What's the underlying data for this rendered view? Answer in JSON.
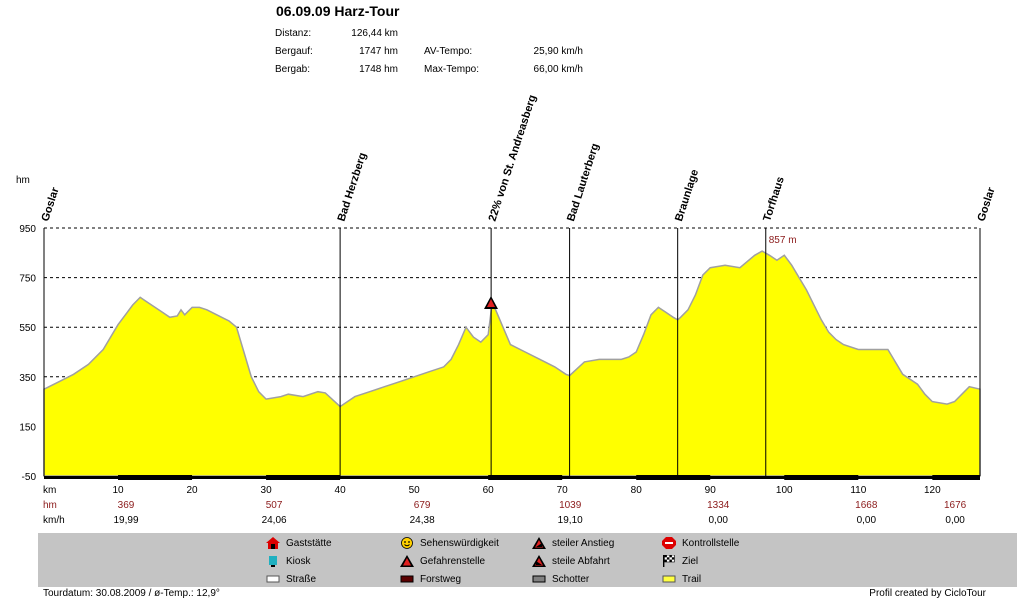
{
  "header": {
    "title": "06.09.09 Harz-Tour",
    "stats": [
      {
        "label": "Distanz:",
        "value": "126,44 km"
      },
      {
        "label": "Bergauf:",
        "value": "1747 hm"
      },
      {
        "label": "Bergab:",
        "value": "1748 hm"
      }
    ],
    "stats_right": [
      {
        "label": "AV-Tempo:",
        "value": "25,90 km/h"
      },
      {
        "label": "Max-Tempo:",
        "value": "66,00 km/h"
      }
    ]
  },
  "chart_data": {
    "type": "area",
    "ylabel": "hm",
    "xlabel": "km",
    "xlim": [
      0,
      126.44
    ],
    "ylim": [
      -50,
      950
    ],
    "y_ticks": [
      "950",
      "750",
      "550",
      "350",
      "150",
      "-50"
    ],
    "y_tick_values": [
      950,
      750,
      550,
      350,
      150,
      -50
    ],
    "x_ticks": [
      10,
      20,
      30,
      40,
      50,
      60,
      70,
      80,
      90,
      100,
      110,
      120
    ],
    "x_tick_labels": [
      "10",
      "20",
      "30",
      "40",
      "50",
      "60",
      "70",
      "80",
      "90",
      "100",
      "110",
      "120"
    ],
    "fill_color": "#ffff00",
    "line_color": "#a0a0a0",
    "grid": "dashed horizontal",
    "waypoints": [
      {
        "name": "Goslar",
        "km": 0
      },
      {
        "name": "Bad Herzberg",
        "km": 40
      },
      {
        "name": "22% von St. Andreasberg",
        "km": 60.4
      },
      {
        "name": "Bad Lauterberg",
        "km": 71
      },
      {
        "name": "Braunlage",
        "km": 85.6
      },
      {
        "name": "Torfhaus",
        "km": 97.5
      },
      {
        "name": "Goslar",
        "km": 126.44
      }
    ],
    "peak_label": {
      "text": "857 m",
      "km": 97.5,
      "elev": 857
    },
    "profile": {
      "km": [
        0,
        2,
        4,
        6,
        8,
        10,
        11,
        12,
        13,
        14,
        16,
        17,
        18,
        18.5,
        19,
        20,
        21,
        22,
        24,
        25,
        26,
        27,
        28,
        29,
        30,
        32,
        33,
        35,
        37,
        38,
        40,
        42,
        44,
        46,
        48,
        50,
        52,
        54,
        55,
        56,
        57,
        58,
        59,
        60,
        60.5,
        61,
        62,
        63,
        65,
        67,
        69,
        70.5,
        71,
        73,
        75,
        77,
        78,
        79,
        80,
        81,
        82,
        83,
        84,
        85,
        85.6,
        86,
        87,
        88,
        89,
        90,
        92,
        94,
        96,
        97,
        98,
        99,
        100,
        101,
        102,
        103,
        104,
        105,
        106,
        107,
        108,
        110,
        112,
        114,
        115,
        116,
        118,
        119,
        120,
        122,
        123,
        124,
        125,
        126.44
      ],
      "elev": [
        300,
        330,
        360,
        400,
        460,
        560,
        600,
        640,
        670,
        650,
        610,
        590,
        595,
        620,
        600,
        630,
        630,
        620,
        590,
        575,
        550,
        450,
        350,
        290,
        260,
        270,
        280,
        270,
        290,
        285,
        230,
        270,
        290,
        310,
        330,
        350,
        370,
        390,
        420,
        480,
        550,
        510,
        490,
        520,
        640,
        620,
        550,
        480,
        450,
        420,
        390,
        360,
        355,
        410,
        420,
        420,
        420,
        430,
        450,
        520,
        600,
        630,
        610,
        590,
        580,
        590,
        620,
        680,
        760,
        790,
        800,
        790,
        840,
        857,
        840,
        820,
        840,
        800,
        750,
        700,
        640,
        580,
        530,
        500,
        480,
        460,
        460,
        460,
        410,
        360,
        320,
        280,
        250,
        240,
        250,
        280,
        310,
        300
      ]
    },
    "rows": {
      "hm_label": "hm",
      "hm_values": [
        {
          "km": 10,
          "text": "369"
        },
        {
          "km": 30,
          "text": "507"
        },
        {
          "km": 50,
          "text": "679"
        },
        {
          "km": 70,
          "text": "1039"
        },
        {
          "km": 90,
          "text": "1334"
        },
        {
          "km": 110,
          "text": "1668"
        },
        {
          "km": 122,
          "text": "1676"
        }
      ],
      "kmh_label": "km/h",
      "kmh_values": [
        {
          "km": 10,
          "text": "19,99"
        },
        {
          "km": 30,
          "text": "24,06"
        },
        {
          "km": 50,
          "text": "24,38"
        },
        {
          "km": 70,
          "text": "19,10"
        },
        {
          "km": 90,
          "text": "0,00"
        },
        {
          "km": 110,
          "text": "0,00"
        },
        {
          "km": 122,
          "text": "0,00"
        }
      ]
    },
    "surface_segments": [
      {
        "from": 10,
        "to": 20
      },
      {
        "from": 30,
        "to": 40
      },
      {
        "from": 60,
        "to": 70
      },
      {
        "from": 80,
        "to": 90
      },
      {
        "from": 100,
        "to": 110
      },
      {
        "from": 120,
        "to": 126.44
      }
    ]
  },
  "legend": [
    {
      "name": "gaststaette",
      "label": "Gaststätte",
      "icon": "house-icon"
    },
    {
      "name": "kiosk",
      "label": "Kiosk",
      "icon": "cup-icon"
    },
    {
      "name": "strasse",
      "label": "Straße",
      "icon": "road-white-icon"
    },
    {
      "name": "sehenswuerdigkeit",
      "label": "Sehenswürdigkeit",
      "icon": "smiley-icon"
    },
    {
      "name": "gefahrenstelle",
      "label": "Gefahrenstelle",
      "icon": "warning-icon"
    },
    {
      "name": "forstweg",
      "label": "Forstweg",
      "icon": "road-dark-icon"
    },
    {
      "name": "steiler-anstieg",
      "label": "steiler Anstieg",
      "icon": "climb-icon"
    },
    {
      "name": "steile-abfahrt",
      "label": "steile Abfahrt",
      "icon": "descent-icon"
    },
    {
      "name": "schotter",
      "label": "Schotter",
      "icon": "road-gray-icon"
    },
    {
      "name": "kontrollstelle",
      "label": "Kontrollstelle",
      "icon": "stop-icon"
    },
    {
      "name": "ziel",
      "label": "Ziel",
      "icon": "flag-icon"
    },
    {
      "name": "trail",
      "label": "Trail",
      "icon": "road-yellow-icon"
    }
  ],
  "footer": {
    "left": "Tourdatum: 30.08.2009  /  ø-Temp.: 12,9°",
    "right": "Profil created by CicloTour"
  }
}
